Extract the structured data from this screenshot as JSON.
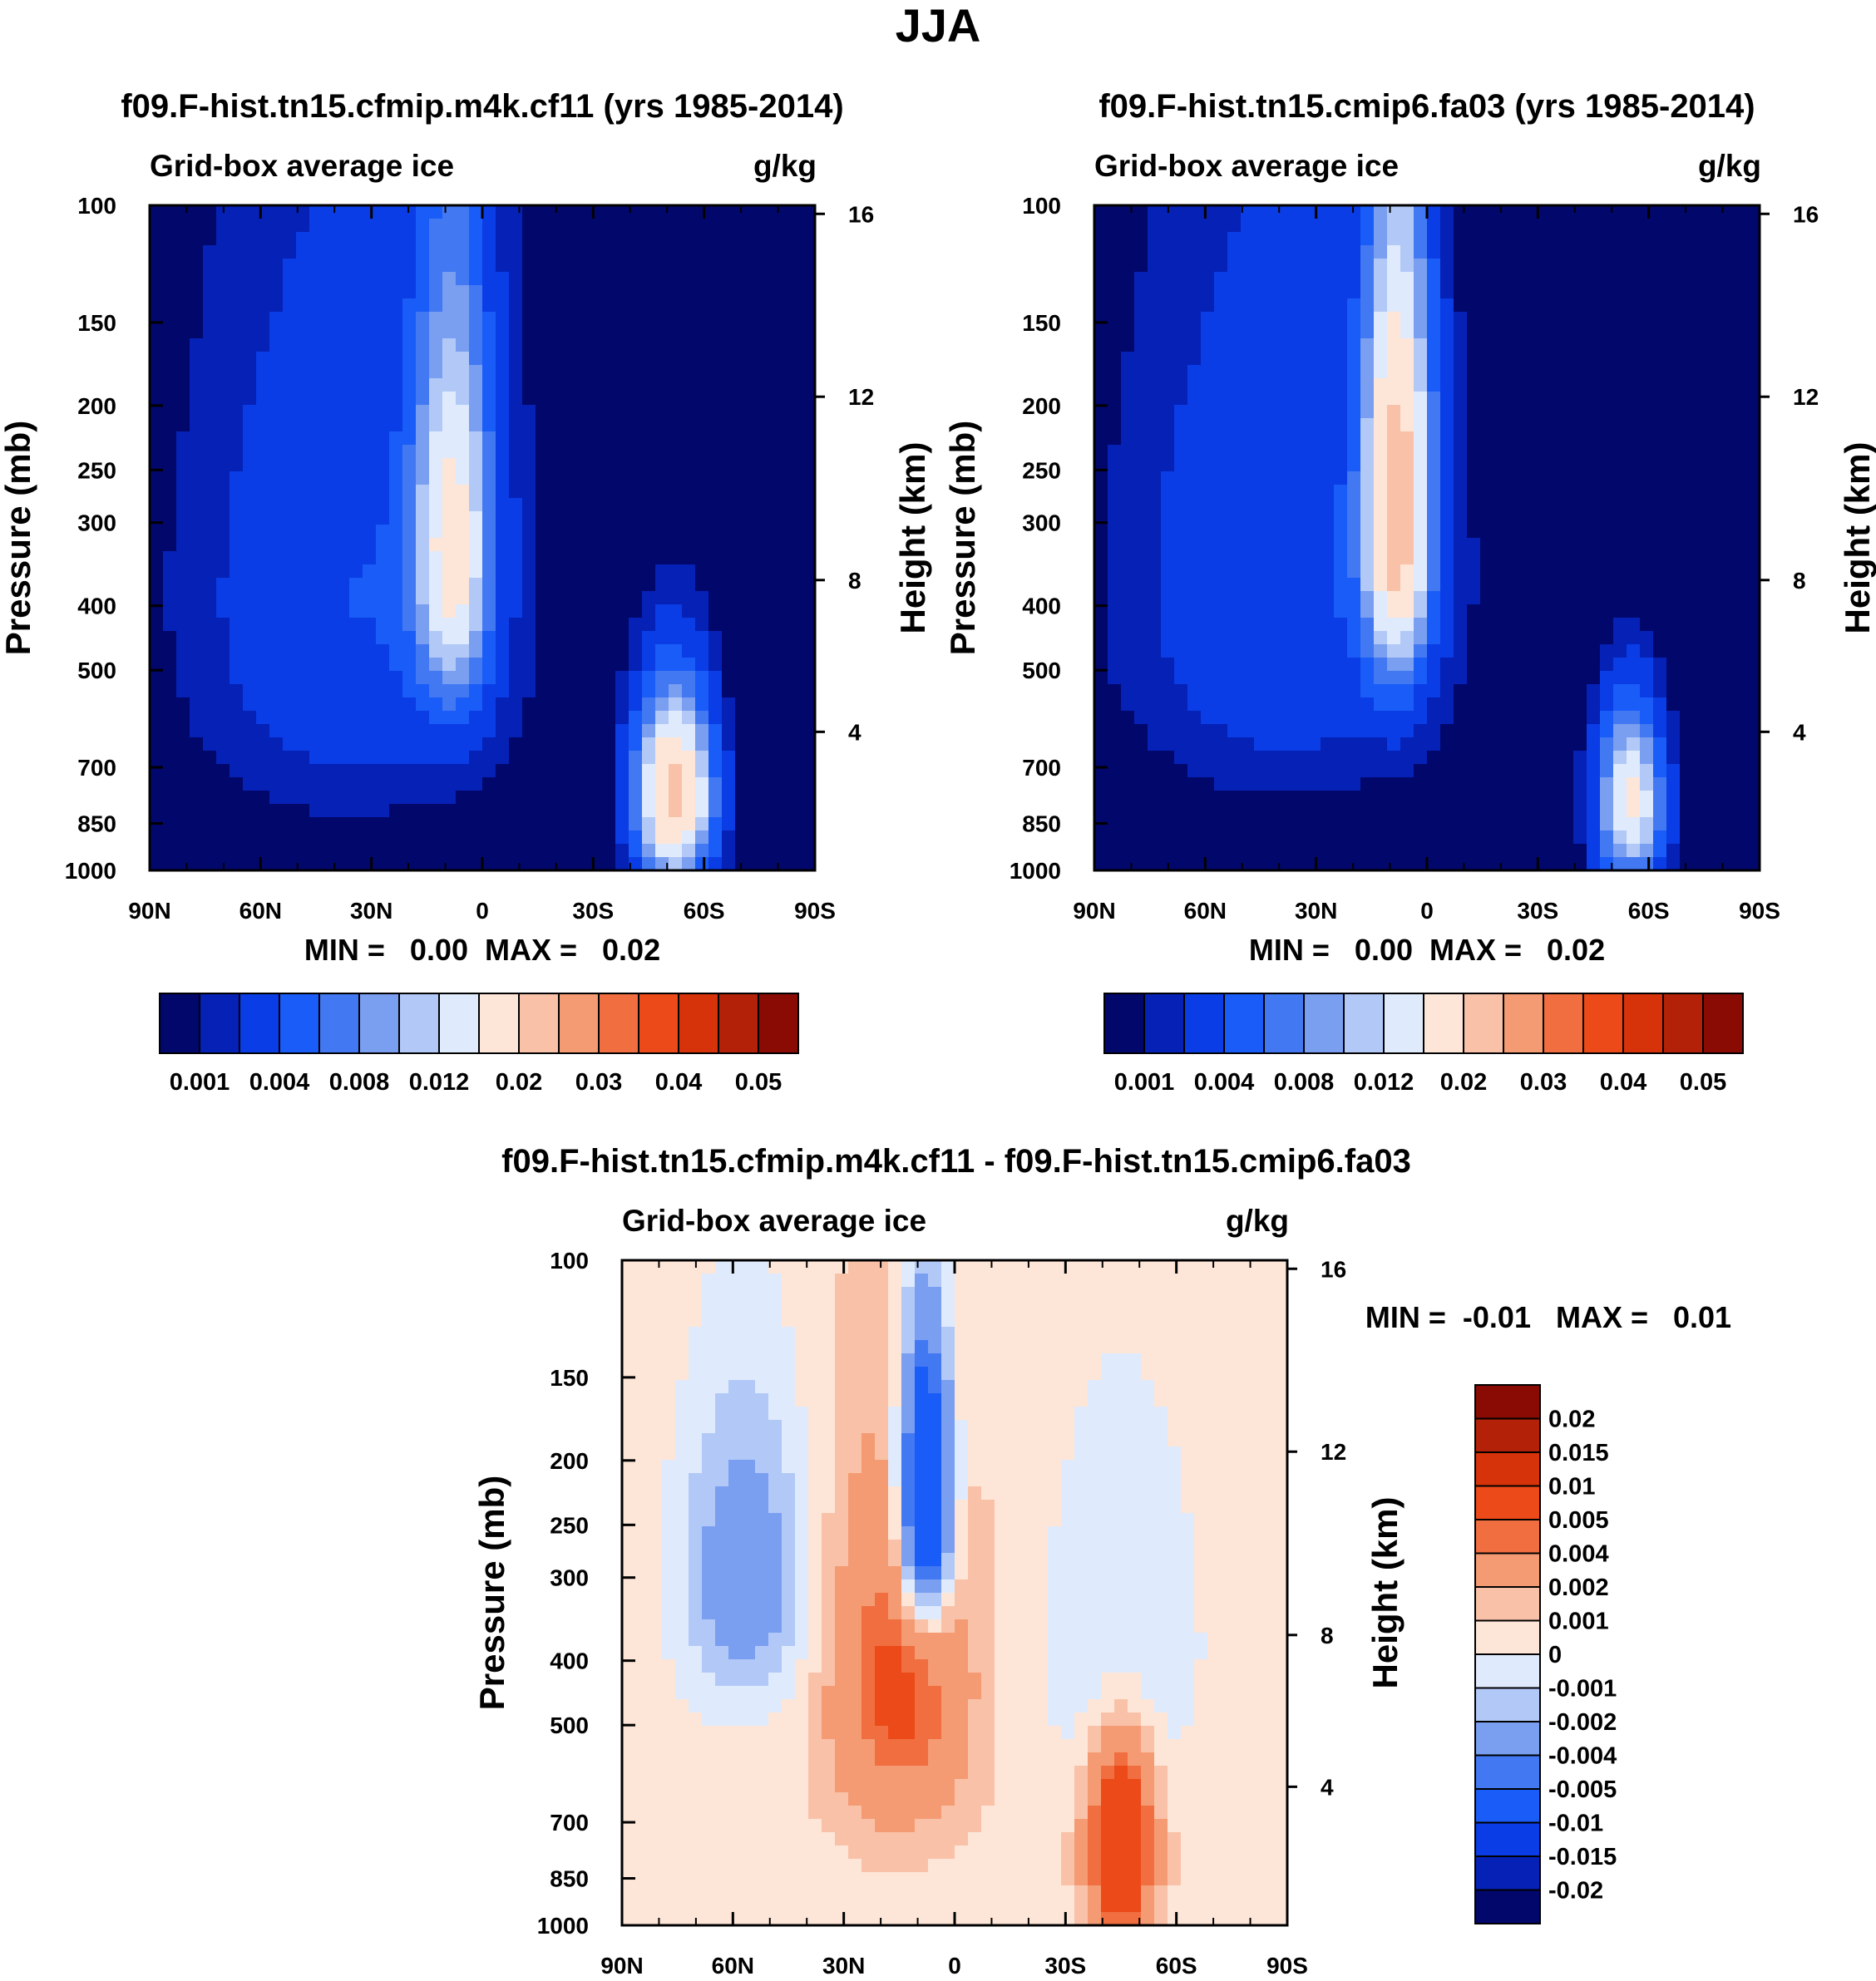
{
  "page_title": "JJA",
  "colors": {
    "abs_levels": [
      "#02076b",
      "#0521b6",
      "#0a3de6",
      "#1a5cf7",
      "#4278f2",
      "#7a9ef0",
      "#b2c9f8",
      "#dfeafc",
      "#fde6d7",
      "#f9c2a8",
      "#f49b73",
      "#f06e40",
      "#ec4a18",
      "#d7330a",
      "#b22108",
      "#890b04"
    ],
    "diff_levels": [
      "#02076b",
      "#0521b6",
      "#0a3de6",
      "#1a5cf7",
      "#4278f2",
      "#7a9ef0",
      "#b2c9f8",
      "#dfeafc",
      "#fde6d7",
      "#f9c2a8",
      "#f49b73",
      "#f06e40",
      "#ec4a18",
      "#d7330a",
      "#b22108",
      "#890b04"
    ]
  },
  "chart_data": [
    {
      "id": "panel-1",
      "type": "heatmap",
      "title": "f09.F-hist.tn15.cfmip.m4k.cf11 (yrs 1985-2014)",
      "left_label": "Grid-box average ice",
      "right_label": "g/kg",
      "ylabel": "Pressure (mb)",
      "ylabel_right": "Height (km)",
      "x_ticks": [
        "90N",
        "60N",
        "30N",
        "0",
        "30S",
        "60S",
        "90S"
      ],
      "x_tick_values": [
        90,
        60,
        30,
        0,
        -30,
        -60,
        -90
      ],
      "y_ticks": [
        "100",
        "150",
        "200",
        "250",
        "300",
        "400",
        "500",
        "700",
        "850",
        "1000"
      ],
      "y_tick_values": [
        100,
        150,
        200,
        250,
        300,
        400,
        500,
        700,
        850,
        1000
      ],
      "height_ticks": [
        "16",
        "12",
        "8",
        "4"
      ],
      "height_tick_pressures": [
        103,
        194,
        366,
        619
      ],
      "xlim": [
        90,
        -90
      ],
      "ylim": [
        100,
        1000
      ],
      "stats": "MIN =   0.00  MAX =   0.02",
      "features": [
        {
          "name": "nh-upper-ice",
          "lat": 35,
          "p": 390,
          "amp": 0.004,
          "sx": 30,
          "sp": 260
        },
        {
          "name": "tropical-anvil",
          "lat": 8,
          "p": 320,
          "amp": 0.015,
          "sx": 7,
          "sp": 150
        },
        {
          "name": "so-low-ice",
          "lat": -52,
          "p": 770,
          "amp": 0.022,
          "sx": 7,
          "sp": 170
        }
      ]
    },
    {
      "id": "panel-2",
      "type": "heatmap",
      "title": "f09.F-hist.tn15.cmip6.fa03 (yrs 1985-2014)",
      "left_label": "Grid-box average ice",
      "right_label": "g/kg",
      "ylabel": "Pressure (mb)",
      "ylabel_right": "Height (km)",
      "x_ticks": [
        "90N",
        "60N",
        "30N",
        "0",
        "30S",
        "60S",
        "90S"
      ],
      "x_tick_values": [
        90,
        60,
        30,
        0,
        -30,
        -60,
        -90
      ],
      "y_ticks": [
        "100",
        "150",
        "200",
        "250",
        "300",
        "400",
        "500",
        "700",
        "850",
        "1000"
      ],
      "y_tick_values": [
        100,
        150,
        200,
        250,
        300,
        400,
        500,
        700,
        850,
        1000
      ],
      "height_ticks": [
        "16",
        "12",
        "8",
        "4"
      ],
      "height_tick_pressures": [
        103,
        194,
        366,
        619
      ],
      "xlim": [
        90,
        -90
      ],
      "ylim": [
        100,
        1000
      ],
      "stats": "MIN =   0.00  MAX =   0.02",
      "features": [
        {
          "name": "nh-upper-ice",
          "lat": 38,
          "p": 370,
          "amp": 0.004,
          "sx": 30,
          "sp": 240
        },
        {
          "name": "tropical-anvil",
          "lat": 8,
          "p": 280,
          "amp": 0.022,
          "sx": 6,
          "sp": 140
        },
        {
          "name": "so-low-ice",
          "lat": -55,
          "p": 790,
          "amp": 0.016,
          "sx": 6,
          "sp": 160
        }
      ]
    },
    {
      "id": "panel-diff",
      "type": "heatmap",
      "title": "f09.F-hist.tn15.cfmip.m4k.cf11 - f09.F-hist.tn15.cmip6.fa03",
      "left_label": "Grid-box average ice",
      "right_label": "g/kg",
      "ylabel": "Pressure (mb)",
      "ylabel_right": "Height (km)",
      "x_ticks": [
        "90N",
        "60N",
        "30N",
        "0",
        "30S",
        "60S",
        "90S"
      ],
      "x_tick_values": [
        90,
        60,
        30,
        0,
        -30,
        -60,
        -90
      ],
      "y_ticks": [
        "100",
        "150",
        "200",
        "250",
        "300",
        "400",
        "500",
        "700",
        "850",
        "1000"
      ],
      "y_tick_values": [
        100,
        150,
        200,
        250,
        300,
        400,
        500,
        700,
        850,
        1000
      ],
      "height_ticks": [
        "16",
        "12",
        "8",
        "4"
      ],
      "height_tick_pressures": [
        103,
        194,
        366,
        619
      ],
      "xlim": [
        90,
        -90
      ],
      "ylim": [
        100,
        1000
      ],
      "stats": "MIN =  -0.01   MAX =   0.01",
      "features": [
        {
          "name": "tropical-decrease",
          "lat": 8,
          "p": 230,
          "amp": -0.012,
          "sx": 5,
          "sp": 80
        },
        {
          "name": "nh-decrease",
          "lat": 57,
          "p": 300,
          "amp": -0.004,
          "sx": 12,
          "sp": 110
        },
        {
          "name": "sh-upper-decrease",
          "lat": -45,
          "p": 380,
          "amp": -0.002,
          "sx": 14,
          "sp": 160
        },
        {
          "name": "tropical-increase",
          "lat": 15,
          "p": 430,
          "amp": 0.005,
          "sx": 13,
          "sp": 180
        },
        {
          "name": "so-increase",
          "lat": -45,
          "p": 760,
          "amp": 0.009,
          "sx": 6,
          "sp": 180
        }
      ]
    }
  ],
  "colorbar_abs": {
    "labels": [
      "0.001",
      "0.004",
      "0.008",
      "0.012",
      "0.02",
      "0.03",
      "0.04",
      "0.05"
    ],
    "label_after_box": [
      1,
      3,
      5,
      7,
      9,
      11,
      13,
      15
    ],
    "levels": [
      0.001,
      0.002,
      0.004,
      0.006,
      0.008,
      0.01,
      0.012,
      0.015,
      0.02,
      0.025,
      0.03,
      0.035,
      0.04,
      0.045,
      0.05
    ]
  },
  "colorbar_diff": {
    "labels": [
      "0.02",
      "0.015",
      "0.01",
      "0.005",
      "0.004",
      "0.002",
      "0.001",
      "0",
      "-0.001",
      "-0.002",
      "-0.004",
      "-0.005",
      "-0.01",
      "-0.015",
      "-0.02"
    ],
    "levels": [
      -0.02,
      -0.015,
      -0.01,
      -0.005,
      -0.004,
      -0.002,
      -0.001,
      0,
      0.001,
      0.002,
      0.004,
      0.005,
      0.01,
      0.015,
      0.02
    ]
  }
}
